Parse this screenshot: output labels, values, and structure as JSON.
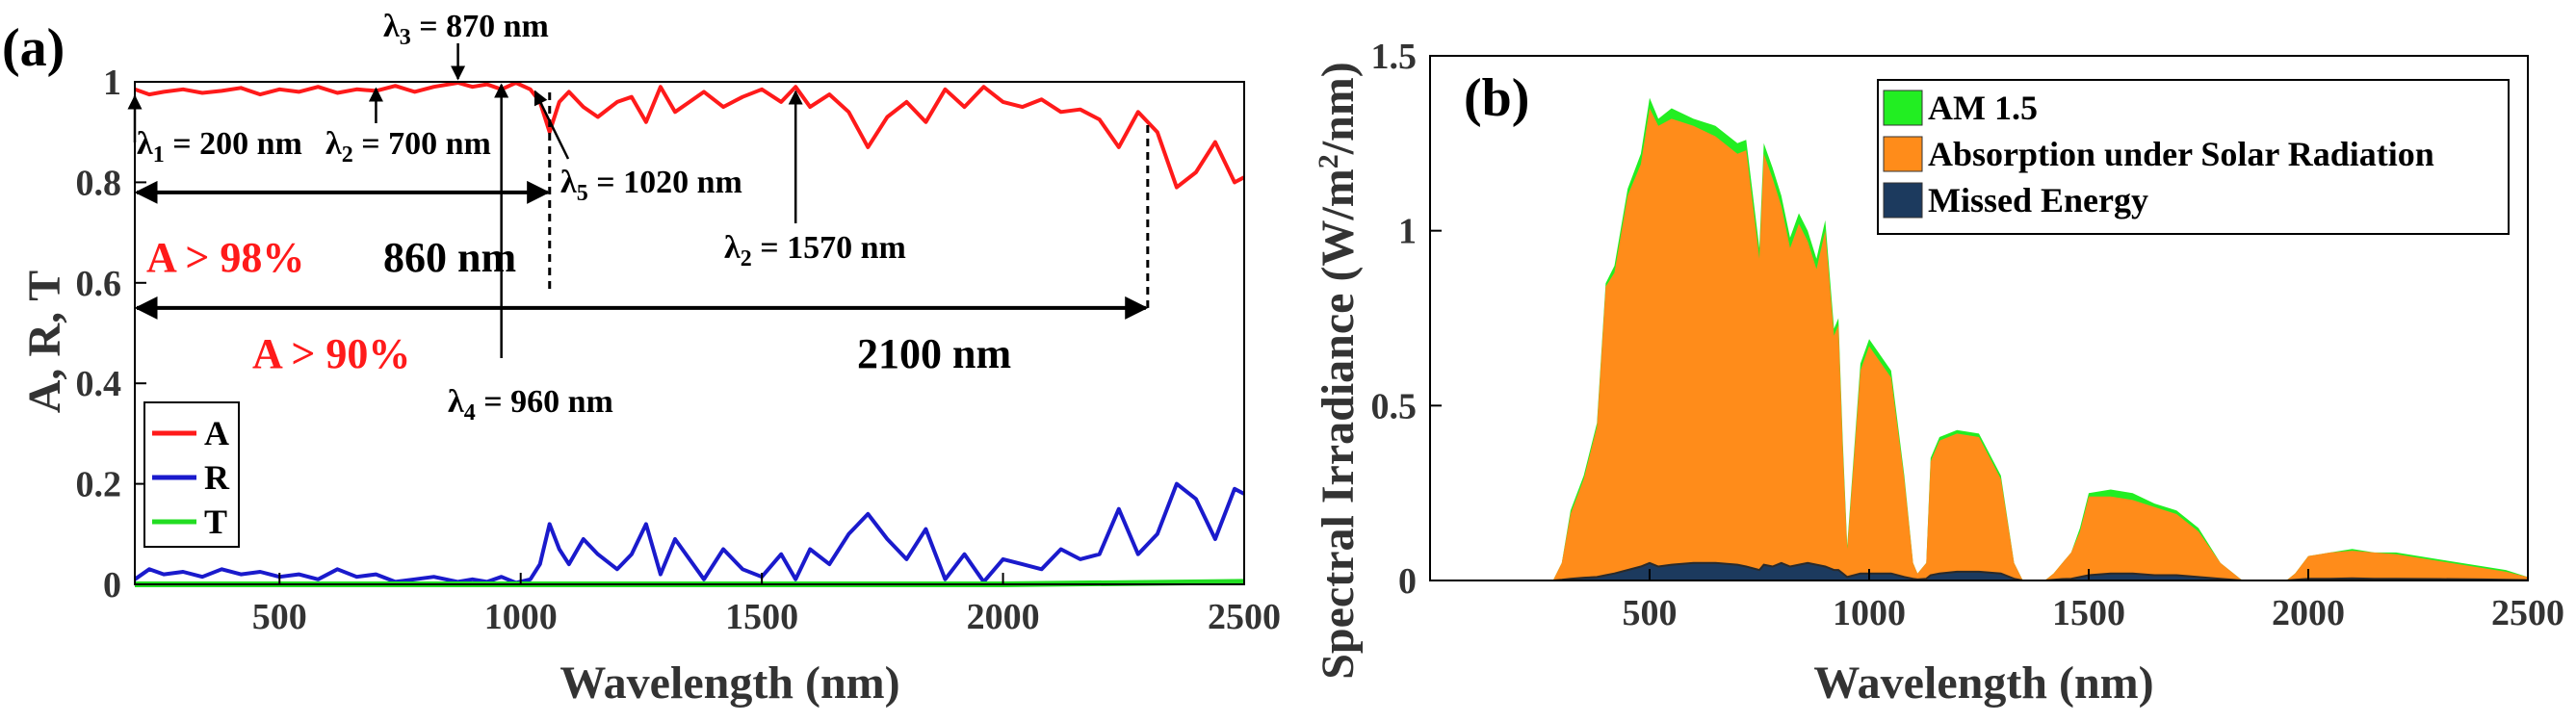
{
  "chart_data": [
    {
      "panel_label": "(a)",
      "type": "line",
      "xlabel": "Wavelength (nm)",
      "ylabel": "A, R, T",
      "xlim": [
        200,
        2500
      ],
      "ylim": [
        0,
        1
      ],
      "xticks": [
        500,
        1000,
        1500,
        2000,
        2500
      ],
      "xtick_labels": [
        "500",
        "1000",
        "1500",
        "2000",
        "2500"
      ],
      "yticks": [
        0,
        0.2,
        0.4,
        0.6,
        0.8,
        1
      ],
      "ytick_labels": [
        "0",
        "0.2",
        "0.4",
        "0.6",
        "0.8",
        "1"
      ],
      "legend": {
        "placement": "bottom-left"
      },
      "colors": {
        "A": "#ff1a1a",
        "R": "#1a1acc",
        "T": "#22dd22"
      },
      "series": [
        {
          "name": "A",
          "x": [
            200,
            230,
            260,
            300,
            340,
            380,
            420,
            460,
            500,
            540,
            580,
            620,
            660,
            700,
            740,
            780,
            820,
            870,
            900,
            930,
            960,
            990,
            1020,
            1040,
            1060,
            1080,
            1100,
            1130,
            1160,
            1200,
            1230,
            1260,
            1290,
            1320,
            1350,
            1380,
            1420,
            1460,
            1500,
            1540,
            1570,
            1600,
            1640,
            1680,
            1720,
            1760,
            1800,
            1840,
            1880,
            1920,
            1960,
            2000,
            2040,
            2080,
            2120,
            2160,
            2200,
            2240,
            2280,
            2320,
            2360,
            2400,
            2440,
            2480,
            2500
          ],
          "values": [
            0.985,
            0.975,
            0.98,
            0.985,
            0.978,
            0.982,
            0.988,
            0.975,
            0.985,
            0.98,
            0.99,
            0.978,
            0.985,
            0.982,
            0.992,
            0.98,
            0.99,
            0.998,
            0.99,
            0.995,
            0.985,
            0.998,
            0.985,
            0.96,
            0.9,
            0.96,
            0.98,
            0.95,
            0.93,
            0.96,
            0.97,
            0.92,
            0.99,
            0.94,
            0.96,
            0.98,
            0.95,
            0.97,
            0.985,
            0.96,
            0.99,
            0.95,
            0.975,
            0.94,
            0.87,
            0.93,
            0.96,
            0.92,
            0.985,
            0.95,
            0.99,
            0.96,
            0.95,
            0.965,
            0.94,
            0.945,
            0.925,
            0.87,
            0.94,
            0.9,
            0.79,
            0.82,
            0.88,
            0.8,
            0.81
          ]
        },
        {
          "name": "R",
          "x": [
            200,
            230,
            260,
            300,
            340,
            380,
            420,
            460,
            500,
            540,
            580,
            620,
            660,
            700,
            740,
            780,
            820,
            870,
            900,
            930,
            960,
            990,
            1020,
            1040,
            1060,
            1080,
            1100,
            1130,
            1160,
            1200,
            1230,
            1260,
            1290,
            1320,
            1350,
            1380,
            1420,
            1460,
            1500,
            1540,
            1570,
            1600,
            1640,
            1680,
            1720,
            1760,
            1800,
            1840,
            1880,
            1920,
            1960,
            2000,
            2040,
            2080,
            2120,
            2160,
            2200,
            2240,
            2280,
            2320,
            2360,
            2400,
            2440,
            2480,
            2500
          ],
          "values": [
            0.01,
            0.03,
            0.02,
            0.025,
            0.015,
            0.03,
            0.02,
            0.025,
            0.015,
            0.02,
            0.01,
            0.03,
            0.015,
            0.02,
            0.005,
            0.01,
            0.015,
            0.005,
            0.01,
            0.005,
            0.015,
            0.003,
            0.01,
            0.04,
            0.12,
            0.07,
            0.04,
            0.09,
            0.06,
            0.03,
            0.06,
            0.12,
            0.02,
            0.09,
            0.05,
            0.01,
            0.07,
            0.03,
            0.015,
            0.06,
            0.01,
            0.07,
            0.04,
            0.1,
            0.14,
            0.09,
            0.05,
            0.11,
            0.01,
            0.06,
            0.005,
            0.05,
            0.04,
            0.03,
            0.07,
            0.05,
            0.06,
            0.15,
            0.06,
            0.1,
            0.2,
            0.17,
            0.09,
            0.19,
            0.18
          ]
        },
        {
          "name": "T",
          "x": [
            200,
            500,
            1000,
            1500,
            2000,
            2500
          ],
          "values": [
            0.0,
            0.0,
            0.0,
            0.0,
            0.0,
            0.005
          ]
        }
      ],
      "annotations": [
        {
          "text": "λ",
          "sub": "1",
          "suffix": " = 200 nm",
          "x": 200
        },
        {
          "text": "λ",
          "sub": "2",
          "suffix": " = 700 nm",
          "x": 700
        },
        {
          "text": "λ",
          "sub": "3",
          "suffix": " = 870 nm",
          "x": 870
        },
        {
          "text": "λ",
          "sub": "4",
          "suffix": " = 960 nm",
          "x": 960
        },
        {
          "text": "λ",
          "sub": "5",
          "suffix": " = 1020 nm",
          "x": 1020
        },
        {
          "text": "λ",
          "sub": "2",
          "suffix": " = 1570 nm",
          "x": 1570
        }
      ],
      "ranges": [
        {
          "label": "A > 98%",
          "width_label": "860 nm",
          "from": 200,
          "to": 1060,
          "y": 0.78
        },
        {
          "label": "A > 90%",
          "width_label": "2100 nm",
          "from": 200,
          "to": 2300,
          "y": 0.55
        }
      ]
    },
    {
      "panel_label": "(b)",
      "type": "area",
      "xlabel": "Wavelength (nm)",
      "ylabel_main": "Spectral Irradiance (W/m",
      "ylabel_sup": "2",
      "ylabel_tail": "/nm)",
      "xlim": [
        0,
        2500
      ],
      "ylim": [
        0,
        1.5
      ],
      "xticks": [
        500,
        1000,
        1500,
        2000,
        2500
      ],
      "xtick_labels": [
        "500",
        "1000",
        "1500",
        "2000",
        "2500"
      ],
      "yticks": [
        0,
        0.5,
        1,
        1.5
      ],
      "ytick_labels": [
        "0",
        "0.5",
        "1",
        "1.5"
      ],
      "legend": {
        "placement": "top-right"
      },
      "colors": {
        "am15": "#22ee22",
        "absorption": "#ff8c1a",
        "missed": "#1c3a5e"
      },
      "x": [
        280,
        300,
        320,
        350,
        380,
        400,
        420,
        450,
        480,
        500,
        520,
        550,
        600,
        650,
        700,
        720,
        750,
        760,
        780,
        800,
        820,
        840,
        860,
        880,
        900,
        920,
        930,
        940,
        950,
        980,
        1000,
        1050,
        1080,
        1100,
        1110,
        1130,
        1140,
        1160,
        1200,
        1250,
        1300,
        1330,
        1350,
        1380,
        1400,
        1420,
        1440,
        1460,
        1480,
        1500,
        1550,
        1600,
        1650,
        1700,
        1750,
        1800,
        1850,
        1900,
        1950,
        1970,
        2000,
        2050,
        2100,
        2150,
        2200,
        2300,
        2400,
        2450,
        2500
      ],
      "series": [
        {
          "name": "AM 1.5",
          "values": [
            0,
            0.05,
            0.2,
            0.3,
            0.45,
            0.85,
            0.9,
            1.12,
            1.22,
            1.38,
            1.32,
            1.35,
            1.32,
            1.3,
            1.25,
            1.26,
            0.95,
            1.25,
            1.18,
            1.1,
            0.98,
            1.05,
            1.0,
            0.92,
            1.03,
            0.72,
            0.75,
            0.4,
            0.1,
            0.62,
            0.69,
            0.6,
            0.3,
            0.05,
            0.02,
            0.05,
            0.35,
            0.41,
            0.43,
            0.42,
            0.3,
            0.05,
            0.0,
            0.0,
            0.0,
            0.02,
            0.05,
            0.08,
            0.15,
            0.25,
            0.26,
            0.25,
            0.22,
            0.2,
            0.15,
            0.05,
            0.0,
            0.0,
            0.0,
            0.02,
            0.07,
            0.08,
            0.09,
            0.08,
            0.08,
            0.06,
            0.04,
            0.03,
            0.01
          ]
        },
        {
          "name": "Absorption under Solar Radiation",
          "values": [
            0,
            0.05,
            0.19,
            0.29,
            0.44,
            0.84,
            0.88,
            1.1,
            1.19,
            1.35,
            1.3,
            1.32,
            1.3,
            1.27,
            1.22,
            1.23,
            0.92,
            1.22,
            1.15,
            1.07,
            0.95,
            1.02,
            0.97,
            0.89,
            1.0,
            0.7,
            0.73,
            0.38,
            0.09,
            0.6,
            0.67,
            0.58,
            0.29,
            0.05,
            0.02,
            0.05,
            0.34,
            0.4,
            0.42,
            0.41,
            0.29,
            0.05,
            0.0,
            0.0,
            0.0,
            0.02,
            0.05,
            0.08,
            0.14,
            0.24,
            0.24,
            0.23,
            0.21,
            0.19,
            0.14,
            0.05,
            0.0,
            0.0,
            0.0,
            0.02,
            0.07,
            0.08,
            0.085,
            0.08,
            0.075,
            0.055,
            0.035,
            0.025,
            0.01
          ]
        },
        {
          "name": "Missed Energy",
          "values": [
            0,
            0.002,
            0.005,
            0.008,
            0.01,
            0.015,
            0.02,
            0.03,
            0.04,
            0.05,
            0.04,
            0.045,
            0.05,
            0.05,
            0.045,
            0.04,
            0.03,
            0.045,
            0.04,
            0.05,
            0.04,
            0.045,
            0.05,
            0.045,
            0.04,
            0.03,
            0.03,
            0.02,
            0.01,
            0.02,
            0.02,
            0.02,
            0.01,
            0.005,
            0.003,
            0.005,
            0.015,
            0.02,
            0.025,
            0.025,
            0.02,
            0.005,
            0,
            0,
            0,
            0.002,
            0.004,
            0.005,
            0.01,
            0.015,
            0.02,
            0.02,
            0.015,
            0.015,
            0.01,
            0.005,
            0,
            0,
            0,
            0.002,
            0.005,
            0.005,
            0.006,
            0.005,
            0.005,
            0.004,
            0.003,
            0.002,
            0.001
          ]
        }
      ]
    }
  ]
}
